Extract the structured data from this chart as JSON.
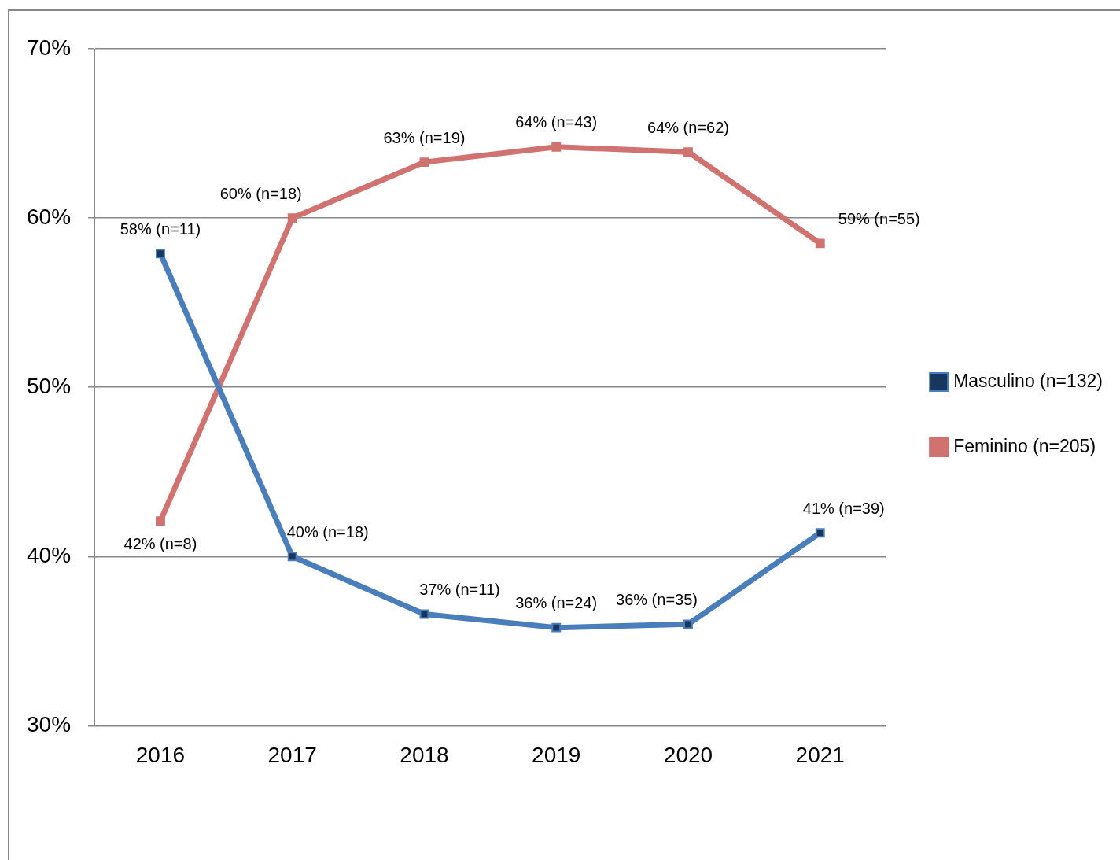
{
  "chart_data": {
    "type": "line",
    "categories": [
      "2016",
      "2017",
      "2018",
      "2019",
      "2020",
      "2021"
    ],
    "series": [
      {
        "name": "Masculino (n=132)",
        "color": "#4a7ebb",
        "values": [
          57.9,
          40,
          36.6,
          35.8,
          36.0,
          41.4
        ],
        "value_labels": [
          "58% (n=11)",
          "40% (n=18)",
          "37% (n=11)",
          "36% (n=24)",
          "36% (n=35)",
          "41% (n=39)"
        ]
      },
      {
        "name": "Feminino (n=205)",
        "color": "#d07370",
        "values": [
          42.1,
          60,
          63.3,
          64.2,
          63.9,
          58.5
        ],
        "value_labels": [
          "42% (n=8)",
          "60% (n=18)",
          "63% (n=19)",
          "64% (n=43)",
          "64% (n=62)",
          "59% (n=55)"
        ]
      }
    ],
    "ylim": [
      30,
      70
    ],
    "yticks": [
      {
        "value": 30,
        "label": "30%"
      },
      {
        "value": 40,
        "label": "40%"
      },
      {
        "value": 50,
        "label": "50%"
      },
      {
        "value": 60,
        "label": "60%"
      },
      {
        "value": 70,
        "label": "70%"
      }
    ],
    "grid": "y",
    "legend": "right",
    "marker": "square",
    "line_style": "solid"
  }
}
